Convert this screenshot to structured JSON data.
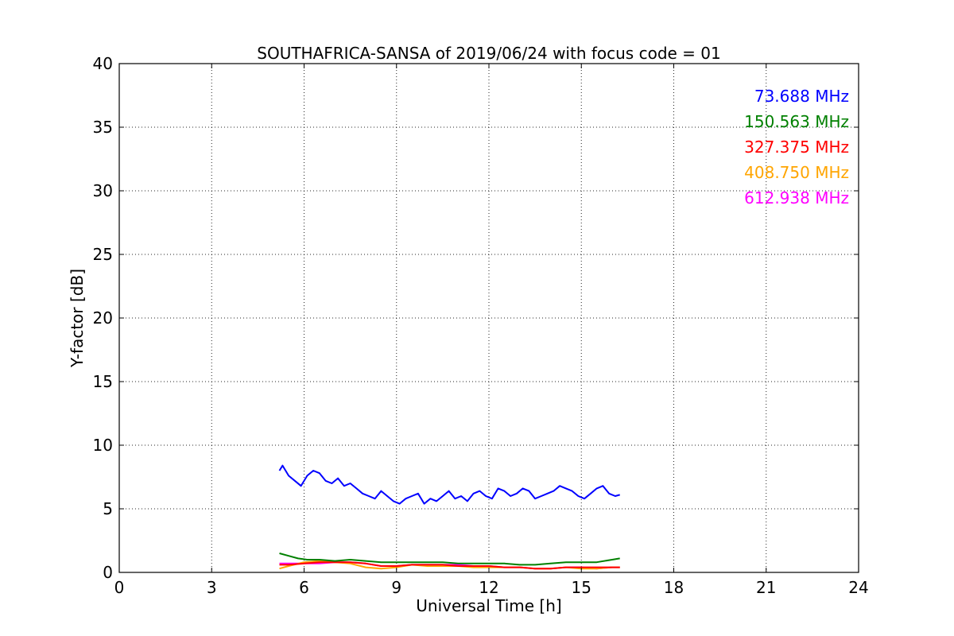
{
  "chart_data": {
    "type": "line",
    "title": "SOUTHAFRICA-SANSA of 2019/06/24 with focus code = 01",
    "xlabel": "Universal Time [h]",
    "ylabel": "Y-factor [dB]",
    "xlim": [
      0,
      24
    ],
    "ylim": [
      0,
      40
    ],
    "xticks": [
      0,
      3,
      6,
      9,
      12,
      15,
      18,
      21,
      24
    ],
    "yticks": [
      0,
      5,
      10,
      15,
      20,
      25,
      30,
      35,
      40
    ],
    "grid": true,
    "legend_position": "top-right",
    "series": [
      {
        "name": "73.688 MHz",
        "color": "#0000ff",
        "x": [
          5.2,
          5.3,
          5.5,
          5.7,
          5.9,
          6.1,
          6.3,
          6.5,
          6.7,
          6.9,
          7.1,
          7.3,
          7.5,
          7.7,
          7.9,
          8.1,
          8.3,
          8.5,
          8.7,
          8.9,
          9.1,
          9.3,
          9.5,
          9.7,
          9.9,
          10.1,
          10.3,
          10.5,
          10.7,
          10.9,
          11.1,
          11.3,
          11.5,
          11.7,
          11.9,
          12.1,
          12.3,
          12.5,
          12.7,
          12.9,
          13.1,
          13.3,
          13.5,
          13.7,
          13.9,
          14.1,
          14.3,
          14.5,
          14.7,
          14.9,
          15.1,
          15.3,
          15.5,
          15.7,
          15.9,
          16.1,
          16.25
        ],
        "y": [
          8.0,
          8.4,
          7.6,
          7.2,
          6.8,
          7.6,
          8.0,
          7.8,
          7.2,
          7.0,
          7.4,
          6.8,
          7.0,
          6.6,
          6.2,
          6.0,
          5.8,
          6.4,
          6.0,
          5.6,
          5.4,
          5.8,
          6.0,
          6.2,
          5.4,
          5.8,
          5.6,
          6.0,
          6.4,
          5.8,
          6.0,
          5.6,
          6.2,
          6.4,
          6.0,
          5.8,
          6.6,
          6.4,
          6.0,
          6.2,
          6.6,
          6.4,
          5.8,
          6.0,
          6.2,
          6.4,
          6.8,
          6.6,
          6.4,
          6.0,
          5.8,
          6.2,
          6.6,
          6.8,
          6.2,
          6.0,
          6.1
        ]
      },
      {
        "name": "150.563 MHz",
        "color": "#008000",
        "x": [
          5.2,
          5.5,
          5.8,
          6.1,
          6.5,
          7.0,
          7.5,
          8.0,
          8.5,
          9.0,
          9.5,
          10.0,
          10.5,
          11.0,
          11.5,
          12.0,
          12.5,
          13.0,
          13.5,
          14.0,
          14.5,
          15.0,
          15.5,
          16.0,
          16.25
        ],
        "y": [
          1.5,
          1.3,
          1.1,
          1.0,
          1.0,
          0.9,
          1.0,
          0.9,
          0.8,
          0.8,
          0.8,
          0.8,
          0.8,
          0.7,
          0.7,
          0.7,
          0.7,
          0.6,
          0.6,
          0.7,
          0.8,
          0.8,
          0.8,
          1.0,
          1.1
        ]
      },
      {
        "name": "327.375 MHz",
        "color": "#ff0000",
        "x": [
          5.2,
          5.5,
          6.0,
          6.5,
          7.0,
          7.5,
          8.0,
          8.5,
          9.0,
          9.5,
          10.0,
          10.5,
          11.0,
          11.5,
          12.0,
          12.5,
          13.0,
          13.5,
          14.0,
          14.5,
          15.0,
          15.5,
          16.0,
          16.25
        ],
        "y": [
          0.6,
          0.6,
          0.7,
          0.8,
          0.8,
          0.8,
          0.7,
          0.5,
          0.5,
          0.6,
          0.6,
          0.6,
          0.5,
          0.5,
          0.5,
          0.4,
          0.4,
          0.3,
          0.3,
          0.4,
          0.4,
          0.4,
          0.4,
          0.4
        ]
      },
      {
        "name": "408.750 MHz",
        "color": "#ffa500",
        "x": [
          5.2,
          5.5,
          6.0,
          6.5,
          7.0,
          7.5,
          8.0,
          8.5,
          9.0,
          9.5,
          10.0,
          10.5,
          11.0,
          11.5,
          12.0,
          12.5,
          13.0,
          13.5,
          14.0,
          14.5,
          15.0,
          15.5,
          16.0,
          16.25
        ],
        "y": [
          0.3,
          0.5,
          0.8,
          0.9,
          0.8,
          0.7,
          0.4,
          0.3,
          0.4,
          0.6,
          0.5,
          0.5,
          0.5,
          0.4,
          0.4,
          0.4,
          0.4,
          0.3,
          0.3,
          0.4,
          0.3,
          0.3,
          0.4,
          0.4
        ]
      },
      {
        "name": "612.938 MHz",
        "color": "#ff00ff",
        "x": [
          5.2,
          5.5,
          6.0,
          6.5,
          7.0,
          7.5,
          8.0,
          8.5,
          9.0,
          9.5,
          10.0,
          10.5,
          11.0,
          11.5,
          12.0,
          12.5,
          13.0,
          13.5,
          14.0,
          14.5,
          15.0,
          15.5,
          16.0,
          16.25
        ],
        "y": [
          0.7,
          0.7,
          0.7,
          0.7,
          0.8,
          0.8,
          0.7,
          0.5,
          0.5,
          0.6,
          0.6,
          0.6,
          0.6,
          0.5,
          0.5,
          0.4,
          0.4,
          0.3,
          0.3,
          0.4,
          0.4,
          0.3,
          0.4,
          0.4
        ]
      }
    ]
  }
}
